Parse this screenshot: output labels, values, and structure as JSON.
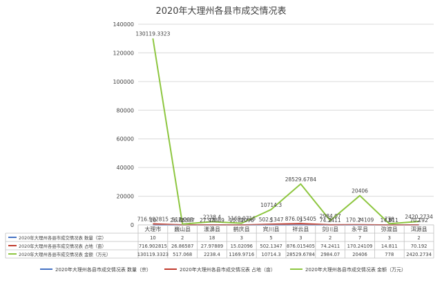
{
  "colors": {
    "series_count": "#4472C4",
    "series_area": "#C0392B",
    "series_amount": "#8DC63F",
    "grid": "#D9D9D9",
    "table_border": "#BFBFBF",
    "text": "#404040"
  },
  "chart_data": {
    "type": "line",
    "title": "2020年大理州各县市成交情况表",
    "categories": [
      "大理市",
      "巍山县",
      "漾濞县",
      "鹤庆县",
      "宾川县",
      "祥云县",
      "剑川县",
      "永平县",
      "弥渡县",
      "洱源县"
    ],
    "y_ticks": [
      "0",
      "20000",
      "40000",
      "60000",
      "80000",
      "100000",
      "120000",
      "140000"
    ],
    "ylim": [
      0,
      140000
    ],
    "grid": true,
    "legend_position": "bottom",
    "series": [
      {
        "name": "2020年大理州各县市成交情况表 数量（宗）",
        "values": [
          10,
          2,
          18,
          3,
          5,
          3,
          2,
          7,
          3,
          2
        ],
        "labels": [
          "10",
          "2",
          "18",
          "3",
          "5",
          "3",
          "2",
          "7",
          "3",
          "2"
        ]
      },
      {
        "name": "2020年大理州各县市成交情况表 占地（亩）",
        "values": [
          716.902815,
          26.86587,
          27.97889,
          15.02096,
          502.1347,
          876.015405,
          74.2411,
          170.24109,
          14.811,
          70.192
        ],
        "labels": [
          "716.902815",
          "26.86587",
          "27.97889",
          "15.02096",
          "502.1347",
          "876.015405",
          "74.2411",
          "170.24109",
          "14.811",
          "70.192"
        ]
      },
      {
        "name": "2020年大理州各县市成交情况表 金额（万元）",
        "values": [
          130119.3323,
          517.068,
          2238.4,
          1169.9716,
          10714.3,
          28529.6784,
          2984.07,
          20406,
          778,
          2420.2734
        ],
        "labels": [
          "130119.3323",
          "517.068",
          "2238.4",
          "1169.9716",
          "10714.3",
          "28529.6784",
          "2984.07",
          "20406",
          "778",
          "2420.2734"
        ]
      }
    ]
  }
}
